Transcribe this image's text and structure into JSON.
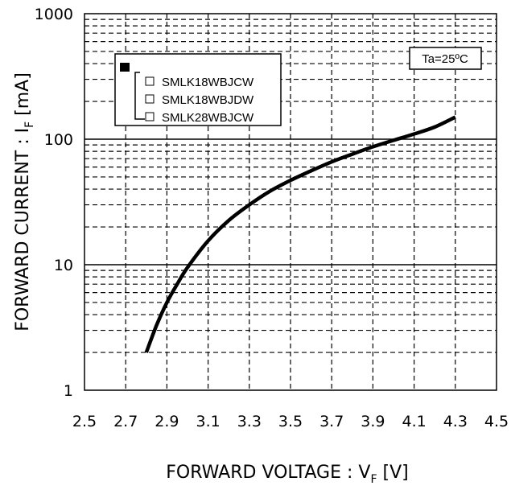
{
  "chart_data": {
    "type": "line",
    "xlabel": {
      "main": "FORWARD VOLTAGE : V",
      "sub": "F",
      "unit": " [V]"
    },
    "ylabel": {
      "main": "FORWARD CURRENT : I",
      "sub": "F",
      "unit": " [mA]"
    },
    "xlim": [
      2.5,
      4.5
    ],
    "ylim": [
      1,
      1000
    ],
    "yscale": "log",
    "x_ticks": [
      "2.5",
      "2.7",
      "2.9",
      "3.1",
      "3.3",
      "3.5",
      "3.7",
      "3.9",
      "4.1",
      "4.3",
      "4.5"
    ],
    "y_ticks": [
      "1",
      "10",
      "100",
      "1000"
    ],
    "grid": true,
    "annotation": "Ta=25ºC",
    "legend": {
      "placement": "top-left",
      "entries": [
        "SMLK18WBJCW",
        "SMLK18WBJDW",
        "SMLK28WBJCW"
      ]
    },
    "series": [
      {
        "x": [
          2.8,
          2.85,
          2.9,
          2.95,
          3.0,
          3.1,
          3.2,
          3.3,
          3.4,
          3.5,
          3.6,
          3.7,
          3.8,
          3.9,
          4.0,
          4.1,
          4.2,
          4.3
        ],
        "y": [
          2,
          3.3,
          5,
          7,
          9.5,
          15.5,
          22.5,
          30,
          38.5,
          47,
          56,
          66,
          76,
          87,
          98,
          110,
          125,
          150
        ]
      }
    ]
  }
}
